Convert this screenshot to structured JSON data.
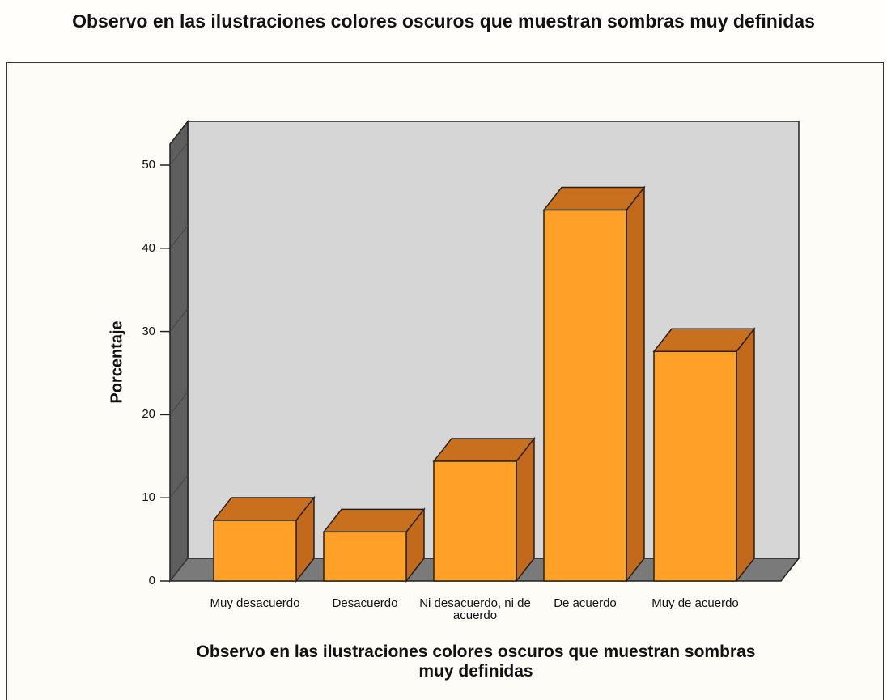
{
  "chart_data": {
    "type": "bar3d",
    "title": "Observo en las ilustraciones colores oscuros que muestran sombras muy definidas",
    "x_label": "Observo en las ilustraciones colores oscuros que muestran sombras muy definidas",
    "y_label": "Porcentaje",
    "categories": [
      "Muy desacuerdo",
      "Desacuerdo",
      "Ni desacuerdo, ni de acuerdo",
      "De acuerdo",
      "Muy de acuerdo"
    ],
    "values": [
      7.3,
      5.9,
      14.4,
      44.6,
      27.6
    ],
    "color": "#ffa126",
    "ylim": [
      0,
      50
    ],
    "yticks": [
      0,
      10,
      20,
      30,
      40,
      50
    ]
  }
}
